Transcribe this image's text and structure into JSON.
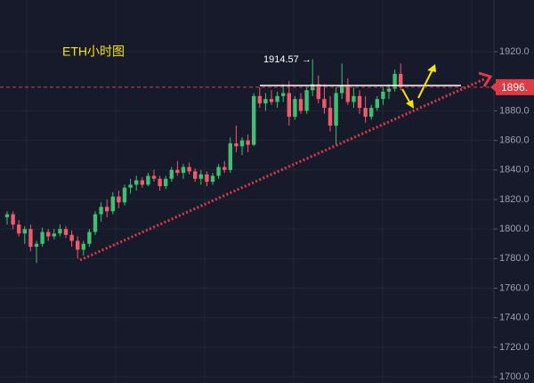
{
  "chart_data": {
    "type": "candlestick",
    "title": "ETH小时图",
    "annotation": "1914.57 →",
    "current_price": {
      "value": 1896,
      "label": "1896."
    },
    "up_color": "#3fbf6f",
    "down_color": "#ef5b6b",
    "grid": true,
    "ylim": [
      1695.8,
      1955
    ],
    "yticks": [
      {
        "value": 1700,
        "label": "1700.0"
      },
      {
        "value": 1720,
        "label": "1720.0"
      },
      {
        "value": 1740,
        "label": "1740.0"
      },
      {
        "value": 1760,
        "label": "1760.0"
      },
      {
        "value": 1780,
        "label": "1780.0"
      },
      {
        "value": 1800,
        "label": "1800.0"
      },
      {
        "value": 1820,
        "label": "1820.0"
      },
      {
        "value": 1840,
        "label": "1840.0"
      },
      {
        "value": 1860,
        "label": "1860.0"
      },
      {
        "value": 1880,
        "label": "1880.0"
      },
      {
        "value": 1920,
        "label": "1920.0"
      }
    ],
    "open": [
      1808,
      1810,
      1803,
      1797,
      1800,
      1788,
      1790,
      1798,
      1795,
      1797,
      1800,
      1796,
      1792,
      1786,
      1790,
      1798,
      1810,
      1815,
      1812,
      1822,
      1818,
      1828,
      1830,
      1833,
      1830,
      1836,
      1834,
      1829,
      1834,
      1840,
      1838,
      1842,
      1839,
      1834,
      1837,
      1832,
      1836,
      1842,
      1840,
      1858,
      1856,
      1860,
      1857,
      1890,
      1885,
      1888,
      1886,
      1890,
      1892,
      1876,
      1888,
      1880,
      1894,
      1898,
      1888,
      1882,
      1870,
      1892,
      1897,
      1886,
      1890,
      1882,
      1876,
      1882,
      1888,
      1893,
      1895,
      1905
    ],
    "high": [
      1812,
      1812,
      1806,
      1802,
      1803,
      1792,
      1801,
      1800,
      1800,
      1803,
      1802,
      1799,
      1795,
      1792,
      1800,
      1812,
      1818,
      1820,
      1825,
      1826,
      1830,
      1834,
      1836,
      1835,
      1838,
      1840,
      1836,
      1836,
      1842,
      1846,
      1844,
      1845,
      1841,
      1840,
      1839,
      1838,
      1844,
      1846,
      1862,
      1870,
      1862,
      1864,
      1892,
      1896,
      1892,
      1894,
      1893,
      1898,
      1900,
      1890,
      1892,
      1896,
      1915,
      1904,
      1898,
      1890,
      1896,
      1912,
      1902,
      1896,
      1894,
      1890,
      1884,
      1890,
      1896,
      1898,
      1908,
      1912
    ],
    "low": [
      1803,
      1800,
      1795,
      1790,
      1785,
      1777,
      1788,
      1792,
      1793,
      1795,
      1794,
      1788,
      1780,
      1782,
      1788,
      1796,
      1805,
      1808,
      1810,
      1814,
      1816,
      1824,
      1826,
      1828,
      1829,
      1832,
      1826,
      1827,
      1832,
      1836,
      1834,
      1837,
      1832,
      1830,
      1829,
      1830,
      1834,
      1838,
      1838,
      1852,
      1850,
      1852,
      1856,
      1882,
      1880,
      1884,
      1882,
      1886,
      1870,
      1874,
      1878,
      1878,
      1890,
      1885,
      1878,
      1866,
      1857,
      1888,
      1884,
      1882,
      1878,
      1872,
      1874,
      1880,
      1884,
      1888,
      1893,
      1894
    ],
    "close": [
      1810,
      1803,
      1797,
      1800,
      1788,
      1790,
      1798,
      1795,
      1797,
      1800,
      1796,
      1792,
      1786,
      1790,
      1798,
      1810,
      1815,
      1812,
      1822,
      1818,
      1828,
      1830,
      1833,
      1830,
      1836,
      1834,
      1829,
      1834,
      1840,
      1838,
      1842,
      1839,
      1834,
      1837,
      1832,
      1836,
      1842,
      1840,
      1858,
      1856,
      1860,
      1857,
      1890,
      1885,
      1888,
      1886,
      1890,
      1892,
      1876,
      1888,
      1880,
      1894,
      1898,
      1888,
      1882,
      1870,
      1892,
      1897,
      1886,
      1890,
      1882,
      1876,
      1882,
      1888,
      1893,
      1895,
      1905,
      1896
    ]
  }
}
